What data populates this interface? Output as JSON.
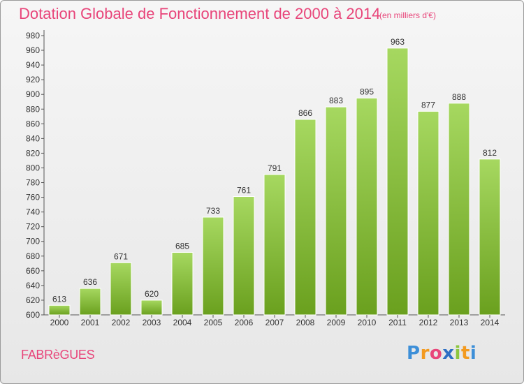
{
  "header": {
    "title": "Dotation Globale de Fonctionnement de 2000 à 2014",
    "subtitle": "(en milliers d'€)"
  },
  "footer": {
    "commune": "FABRèGUES",
    "logo_letters": [
      "P",
      "r",
      "o",
      "x",
      "i",
      "t",
      "i"
    ],
    "logo_colors": [
      "#3d8fd8",
      "#f39a1f",
      "#e8457a",
      "#2d6fc4",
      "#8cc63f",
      "#f39a1f",
      "#3d8fd8"
    ]
  },
  "colors": {
    "bar_light": "#a6d860",
    "bar_dark": "#6aa01e",
    "accent": "#e8457a"
  },
  "chart_data": {
    "type": "bar",
    "title": "Dotation Globale de Fonctionnement de 2000 à 2014",
    "subtitle": "(en milliers d'€)",
    "xlabel": "",
    "ylabel": "",
    "categories": [
      "2000",
      "2001",
      "2002",
      "2003",
      "2004",
      "2005",
      "2006",
      "2007",
      "2008",
      "2009",
      "2010",
      "2011",
      "2012",
      "2013",
      "2014"
    ],
    "values": [
      613,
      636,
      671,
      620,
      685,
      733,
      761,
      791,
      866,
      883,
      895,
      963,
      877,
      888,
      812
    ],
    "ylim": [
      600,
      980
    ],
    "yticks": [
      600,
      620,
      640,
      660,
      680,
      700,
      720,
      740,
      760,
      780,
      800,
      820,
      840,
      860,
      880,
      900,
      920,
      940,
      960,
      980
    ],
    "grid": false,
    "data_labels": true
  }
}
